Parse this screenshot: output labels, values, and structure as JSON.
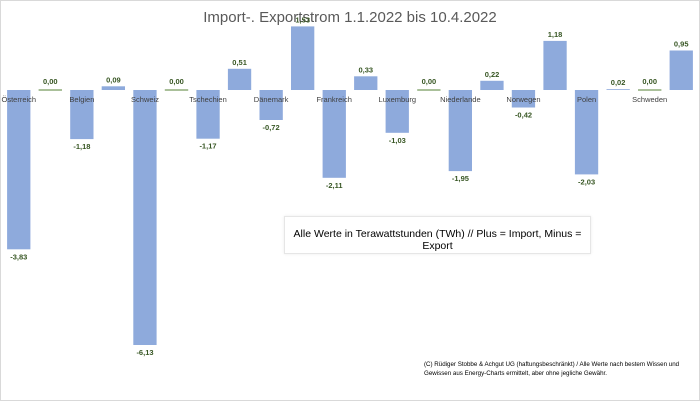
{
  "chart_data": {
    "type": "bar",
    "title": "Import-. Exportstrom 1.1.2022 bis  10.4.2022",
    "categories": [
      "Österreich",
      "",
      "Belgien",
      "",
      "Schweiz",
      "",
      "Tschechien",
      "",
      "Dänemark",
      "",
      "Frankreich",
      "",
      "Luxemburg",
      "",
      "Niederlande",
      "",
      "Norwegen",
      "",
      "Polen",
      "",
      "Schweden",
      ""
    ],
    "values": [
      -3.83,
      0.0,
      -1.18,
      0.09,
      -6.13,
      0.0,
      -1.17,
      0.51,
      -0.72,
      1.53,
      -2.11,
      0.33,
      -1.03,
      0.0,
      -1.95,
      0.22,
      -0.42,
      1.18,
      -2.03,
      0.02,
      0.0,
      0.95
    ],
    "value_labels": [
      "-3,83",
      "0,00",
      "-1,18",
      "0,09",
      "-6,13",
      "0,00",
      "-1,17",
      "0,51",
      "-0,72",
      "1,53",
      "-2,11",
      "0,33",
      "-1,03",
      "0,00",
      "-1,95",
      "0,22",
      "-0,42",
      "1,18",
      "-2,03",
      "0,02",
      "0,00",
      "0,95"
    ],
    "ylim": [
      -6.4,
      1.65
    ],
    "grid": false,
    "legend": "none",
    "bar_color": "#8eaadc",
    "zero_line_color": "#548235",
    "label_color": "#375623"
  },
  "annotation": "Alle Werte in Terawattstunden (TWh) // Plus = Import, Minus = Export",
  "footer": "(C) Rüdiger Stobbe & Achgut UG (haftungsbeschränkt) / Alle Werte nach bestem Wissen und Gewissen aus Energy-Charts ermittelt, aber ohne jegliche Gewähr."
}
